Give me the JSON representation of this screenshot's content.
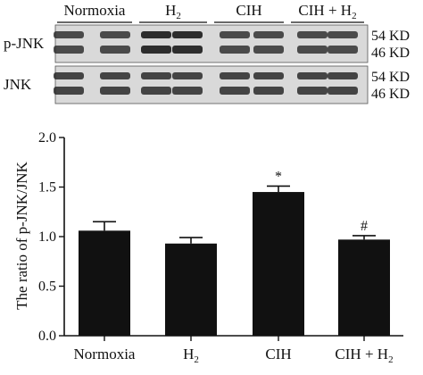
{
  "western_blot": {
    "groups": [
      {
        "label": "Normoxia",
        "sub": ""
      },
      {
        "label": "H",
        "sub": "2"
      },
      {
        "label": "CIH",
        "sub": ""
      },
      {
        "label": "CIH + H",
        "sub": "2"
      }
    ],
    "rows": [
      {
        "label": "p-JNK",
        "markers": [
          "54 KD",
          "46 KD"
        ]
      },
      {
        "label": "JNK",
        "markers": [
          "54 KD",
          "46 KD"
        ]
      }
    ]
  },
  "chart_data": {
    "type": "bar",
    "categories": [
      {
        "label": "Normoxia",
        "sub": ""
      },
      {
        "label": "H",
        "sub": "2"
      },
      {
        "label": "CIH",
        "sub": ""
      },
      {
        "label": "CIH + H",
        "sub": "2"
      }
    ],
    "values": [
      1.06,
      0.93,
      1.45,
      0.97
    ],
    "errors": [
      0.09,
      0.06,
      0.06,
      0.04
    ],
    "annotations": [
      "",
      "",
      "*",
      "#"
    ],
    "ylabel": "The ratio of p-JNK/JNK",
    "xlabel": "",
    "ylim": [
      0,
      2.0
    ],
    "yticks": [
      "0.0",
      "0.5",
      "1.0",
      "1.5",
      "2.0"
    ],
    "bar_color": "#111111",
    "grid": false
  }
}
